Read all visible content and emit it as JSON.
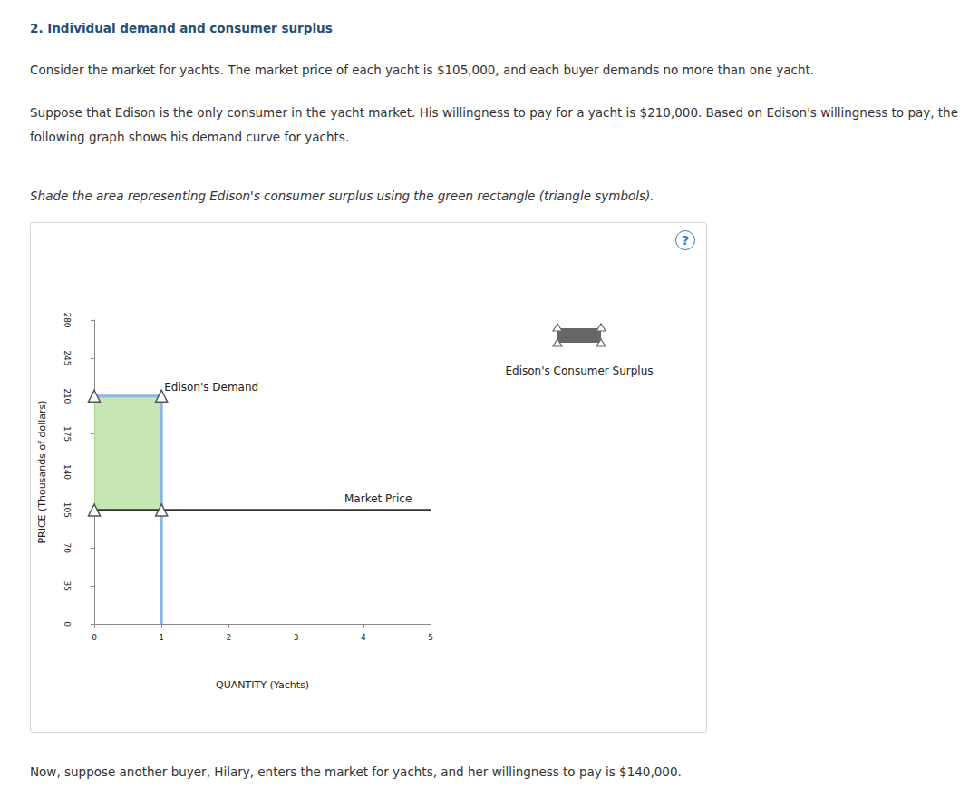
{
  "document": {
    "heading": "2. Individual demand and consumer surplus",
    "paragraphs": [
      "Consider the market for yachts. The market price of each yacht is $105,000, and each buyer demands no more than one yacht.",
      "Suppose that Edison is the only consumer in the yacht market. His willingness to pay for a yacht is $210,000. Based on Edison's willingness to pay, the following graph shows his demand curve for yachts."
    ],
    "instruction": "Shade the area representing Edison's consumer surplus using the green rectangle (triangle symbols).",
    "help": "?",
    "closing": "Now, suppose another buyer, Hilary, enters the market for yachts, and her willingness to pay is $140,000."
  },
  "chart_data": {
    "type": "line",
    "xlabel": "QUANTITY (Yachts)",
    "ylabel": "PRICE (Thousands of dollars)",
    "xlim": [
      0,
      5
    ],
    "xticks": [
      0,
      1,
      2,
      3,
      4,
      5
    ],
    "ylim": [
      0,
      280
    ],
    "yticks": [
      0,
      35,
      70,
      105,
      140,
      175,
      210,
      245,
      280
    ],
    "grid": false,
    "legend": "right",
    "series": [
      {
        "name": "Edison's Demand",
        "type": "line",
        "color": "#8db6e3",
        "x": [
          0,
          1,
          1
        ],
        "values": [
          210,
          210,
          0
        ]
      },
      {
        "name": "Market Price",
        "type": "line",
        "color": "#333333",
        "x": [
          0,
          5
        ],
        "values": [
          105,
          105
        ]
      },
      {
        "name": "Edison's Consumer Surplus",
        "type": "area",
        "color": "#c6e6b3",
        "marker": "triangle",
        "x": [
          0,
          1,
          1,
          0
        ],
        "values": [
          210,
          210,
          105,
          105
        ]
      }
    ]
  }
}
